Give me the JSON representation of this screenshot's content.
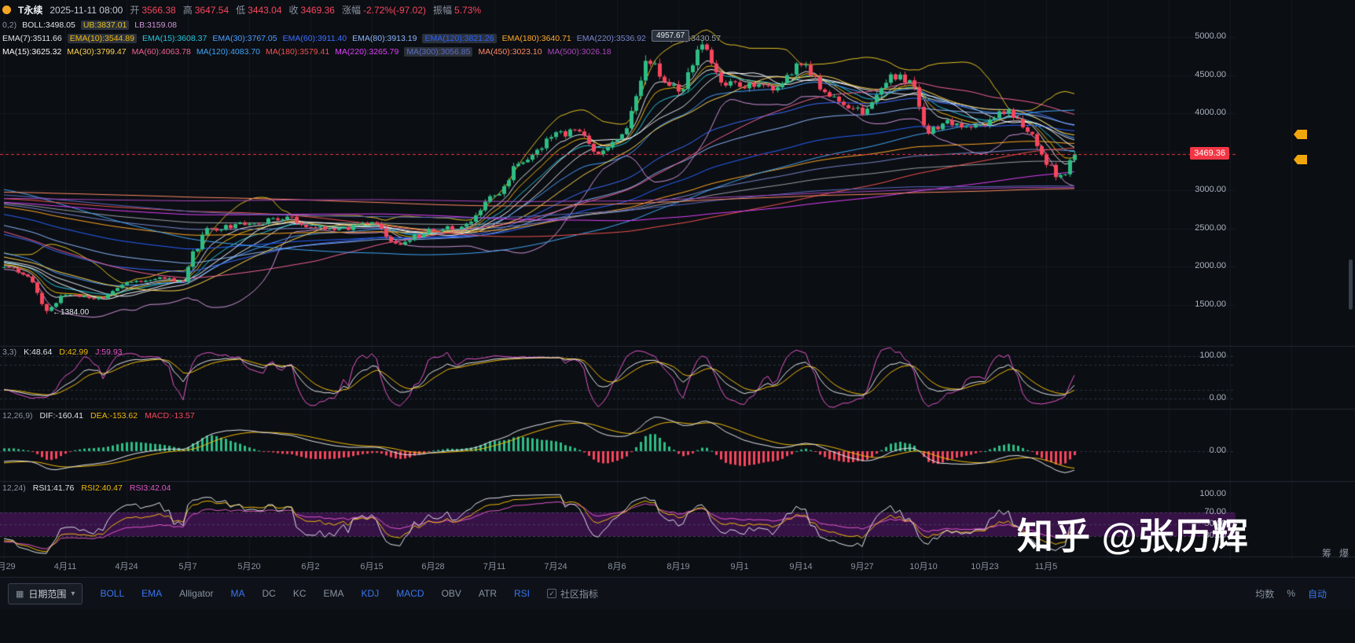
{
  "watermark": "知乎 @张历辉",
  "header": {
    "symbol_fragment": "T永续",
    "datetime": "2025-11-11 08:00",
    "fields": [
      {
        "label": "开",
        "value": "3566.38"
      },
      {
        "label": "高",
        "value": "3647.54"
      },
      {
        "label": "低",
        "value": "3443.04"
      },
      {
        "label": "收",
        "value": "3469.36"
      },
      {
        "label": "涨幅",
        "value": "-2.72%(-97.02)"
      },
      {
        "label": "振幅",
        "value": "5.73%"
      }
    ],
    "boll": {
      "prefix": "0,2)",
      "items": [
        {
          "label": "BOLL",
          "value": "3498.05",
          "color": "#dfe3e8"
        },
        {
          "label": "UB",
          "value": "3837.01",
          "color": "#e3c224",
          "hl": true
        },
        {
          "label": "LB",
          "value": "3159.08",
          "color": "#ce93d8"
        }
      ]
    },
    "ema": {
      "items": [
        {
          "label": "EMA(7)",
          "value": "3511.66",
          "color": "#dfe3e8"
        },
        {
          "label": "EMA(10)",
          "value": "3544.89",
          "color": "#f0b90b",
          "hl": true
        },
        {
          "label": "EMA(15)",
          "value": "3608.37",
          "color": "#26c6da"
        },
        {
          "label": "EMA(30)",
          "value": "3767.05",
          "color": "#4a9eff"
        },
        {
          "label": "EMA(60)",
          "value": "3911.40",
          "color": "#3d6dff"
        },
        {
          "label": "EMA(80)",
          "value": "3913.19",
          "color": "#8ab4f8"
        },
        {
          "label": "EMA(120)",
          "value": "3821.26",
          "color": "#2962ff",
          "hl": true
        },
        {
          "label": "EMA(180)",
          "value": "3640.71",
          "color": "#ffa726"
        },
        {
          "label": "EMA(220)",
          "value": "3536.92",
          "color": "#7986cb"
        },
        {
          "label": "EMA(300)",
          "value": "3430.57",
          "color": "#9aa0a6"
        }
      ]
    },
    "ma": {
      "items": [
        {
          "label": "MA(15)",
          "value": "3625.32",
          "color": "#fafafa"
        },
        {
          "label": "MA(30)",
          "value": "3799.47",
          "color": "#ffd54f"
        },
        {
          "label": "MA(60)",
          "value": "4063.78",
          "color": "#f06292"
        },
        {
          "label": "MA(120)",
          "value": "4083.70",
          "color": "#42a5f5"
        },
        {
          "label": "MA(180)",
          "value": "3579.41",
          "color": "#ef5350"
        },
        {
          "label": "MA(220)",
          "value": "3265.79",
          "color": "#e040fb"
        },
        {
          "label": "MA(300)",
          "value": "3056.85",
          "color": "#5c6bc0",
          "hl": true
        },
        {
          "label": "MA(450)",
          "value": "3023.10",
          "color": "#ff8a65"
        },
        {
          "label": "MA(500)",
          "value": "3026.18",
          "color": "#ab47bc"
        }
      ]
    }
  },
  "panels": {
    "kdj": {
      "prefix": "3,3)",
      "values": [
        {
          "label": "K",
          "value": "48.64",
          "color": "#dfe3e8"
        },
        {
          "label": "D",
          "value": "42.99",
          "color": "#f0b90b"
        },
        {
          "label": "J",
          "value": "59.93",
          "color": "#e356c9"
        }
      ],
      "axis": [
        {
          "label": "100.00",
          "value": 100
        },
        {
          "label": "0.00",
          "value": 0
        }
      ]
    },
    "macd": {
      "prefix": "12,26,9)",
      "values": [
        {
          "label": "DIF",
          "value": "-160.41",
          "color": "#dfe3e8"
        },
        {
          "label": "DEA",
          "value": "-153.62",
          "color": "#f0b90b"
        },
        {
          "label": "MACD",
          "value": "-13.57",
          "color": "#f6465d"
        }
      ],
      "axis": [
        {
          "label": "0.00",
          "value": 0
        }
      ]
    },
    "rsi": {
      "prefix": "12,24)",
      "values": [
        {
          "label": "RSI1",
          "value": "41.76",
          "color": "#dfe3e8"
        },
        {
          "label": "RSI2",
          "value": "40.47",
          "color": "#f0b90b"
        },
        {
          "label": "RSI3",
          "value": "42.04",
          "color": "#e356c9"
        }
      ],
      "axis": [
        {
          "label": "100.00",
          "value": 100
        },
        {
          "label": "70.00",
          "value": 70
        },
        {
          "label": "50.00",
          "value": 50
        },
        {
          "label": "30.00",
          "value": 30
        }
      ]
    }
  },
  "axes": {
    "price_ticks": [
      {
        "label": "5000.00",
        "value": 5000
      },
      {
        "label": "4500.00",
        "value": 4500
      },
      {
        "label": "4000.00",
        "value": 4000
      },
      {
        "label": "3000.00",
        "value": 3000
      },
      {
        "label": "2500.00",
        "value": 2500
      },
      {
        "label": "2000.00",
        "value": 2000
      },
      {
        "label": "1500.00",
        "value": 1500
      }
    ],
    "last_price": {
      "label": "3469.36",
      "value": 3469.36
    },
    "high_marker": {
      "label": "4957.67"
    },
    "low_marker": {
      "arrow": "←",
      "label": "1384.00"
    },
    "date_ticks": [
      {
        "label": "3月29",
        "day": 0
      },
      {
        "label": "4月11",
        "day": 13
      },
      {
        "label": "4月24",
        "day": 26
      },
      {
        "label": "5月7",
        "day": 39
      },
      {
        "label": "5月20",
        "day": 52
      },
      {
        "label": "6月2",
        "day": 65
      },
      {
        "label": "6月15",
        "day": 78
      },
      {
        "label": "6月28",
        "day": 91
      },
      {
        "label": "7月11",
        "day": 104
      },
      {
        "label": "7月24",
        "day": 117
      },
      {
        "label": "8月6",
        "day": 130
      },
      {
        "label": "8月19",
        "day": 143
      },
      {
        "label": "9月1",
        "day": 156
      },
      {
        "label": "9月14",
        "day": 169
      },
      {
        "label": "9月27",
        "day": 182
      },
      {
        "label": "10月10",
        "day": 195
      },
      {
        "label": "10月23",
        "day": 208
      },
      {
        "label": "11月5",
        "day": 221
      }
    ]
  },
  "toolbar": {
    "date_range_label": "日期范围",
    "items": [
      {
        "label": "BOLL",
        "name": "boll",
        "active": true
      },
      {
        "label": "EMA",
        "name": "ema",
        "active": true
      },
      {
        "label": "Alligator",
        "name": "alligator",
        "active": false
      },
      {
        "label": "MA",
        "name": "ma",
        "active": true
      },
      {
        "label": "DC",
        "name": "dc",
        "active": false
      },
      {
        "label": "KC",
        "name": "kc",
        "active": false
      },
      {
        "label": "EMA",
        "name": "ema-sub",
        "active": false
      },
      {
        "label": "KDJ",
        "name": "kdj",
        "active": true
      },
      {
        "label": "MACD",
        "name": "macd",
        "active": true
      },
      {
        "label": "OBV",
        "name": "obv",
        "active": false
      },
      {
        "label": "ATR",
        "name": "atr",
        "active": false
      },
      {
        "label": "RSI",
        "name": "rsi",
        "active": true
      },
      {
        "label": "社区指标",
        "name": "community-indicators",
        "active": false,
        "checkbox": true
      }
    ],
    "right": [
      {
        "label": "均数",
        "name": "average",
        "active": false
      },
      {
        "label": "%",
        "name": "percent",
        "active": false
      },
      {
        "label": "自动",
        "name": "auto",
        "active": true
      }
    ]
  },
  "side_strip": {
    "items": [
      {
        "label": "筹",
        "name": "chips"
      },
      {
        "label": "爆",
        "name": "liquidation"
      }
    ]
  },
  "chart_data": {
    "type": "candlestick",
    "interval": "1D",
    "ohlc_summary": {
      "open": 3566.38,
      "high": 3647.54,
      "low": 3443.04,
      "close": 3469.36,
      "change_pct": -2.72,
      "change_abs": -97.02,
      "amplitude_pct": 5.73
    },
    "axis_price_min": 1500,
    "axis_price_max": 5000,
    "visible_days": 228,
    "noise_seed": 9,
    "last_price": 3469.36,
    "last_price_color": "#f23645",
    "up_color": "#2ebd85",
    "down_color": "#f6465d",
    "high_point": {
      "day": 148,
      "price": 4957.67
    },
    "low_point": {
      "day": 9,
      "price": 1384.0
    },
    "anchors": [
      [
        -500,
        2050
      ],
      [
        -440,
        2300
      ],
      [
        -380,
        3480
      ],
      [
        -330,
        3100
      ],
      [
        -270,
        3420
      ],
      [
        -210,
        2650
      ],
      [
        -150,
        2450
      ],
      [
        -100,
        3850
      ],
      [
        -70,
        3300
      ],
      [
        -40,
        2720
      ],
      [
        -20,
        2150
      ],
      [
        0,
        2010
      ],
      [
        5,
        1860
      ],
      [
        9,
        1430
      ],
      [
        13,
        1640
      ],
      [
        20,
        1590
      ],
      [
        26,
        1790
      ],
      [
        33,
        1845
      ],
      [
        38,
        1810
      ],
      [
        40,
        2180
      ],
      [
        43,
        2480
      ],
      [
        52,
        2560
      ],
      [
        60,
        2640
      ],
      [
        65,
        2520
      ],
      [
        71,
        2500
      ],
      [
        78,
        2555
      ],
      [
        84,
        2260
      ],
      [
        87,
        2400
      ],
      [
        91,
        2480
      ],
      [
        98,
        2530
      ],
      [
        104,
        2960
      ],
      [
        110,
        3380
      ],
      [
        117,
        3720
      ],
      [
        122,
        3790
      ],
      [
        126,
        3470
      ],
      [
        130,
        3640
      ],
      [
        137,
        4680
      ],
      [
        140,
        4440
      ],
      [
        143,
        4310
      ],
      [
        148,
        4890
      ],
      [
        153,
        4360
      ],
      [
        156,
        4390
      ],
      [
        162,
        4310
      ],
      [
        169,
        4610
      ],
      [
        176,
        4190
      ],
      [
        182,
        4030
      ],
      [
        188,
        4470
      ],
      [
        192,
        4440
      ],
      [
        196,
        3780
      ],
      [
        200,
        3890
      ],
      [
        205,
        3850
      ],
      [
        208,
        3890
      ],
      [
        212,
        4040
      ],
      [
        217,
        3810
      ],
      [
        221,
        3360
      ],
      [
        224,
        3160
      ],
      [
        227,
        3469.36
      ]
    ],
    "overlays": {
      "boll": {
        "period": 20,
        "mult": 2,
        "mid_color": "#dfe3e8",
        "band_color": "#e3c224",
        "lb_color": "#ce93d8"
      },
      "ema": [
        [
          7,
          "#dfe3e8"
        ],
        [
          10,
          "#f0b90b"
        ],
        [
          15,
          "#26c6da"
        ],
        [
          30,
          "#4a9eff"
        ],
        [
          60,
          "#3d6dff"
        ],
        [
          80,
          "#8ab4f8"
        ],
        [
          120,
          "#2962ff"
        ],
        [
          180,
          "#ffa726"
        ],
        [
          220,
          "#7986cb"
        ],
        [
          300,
          "#9aa0a6"
        ]
      ],
      "ma": [
        [
          15,
          "#fafafa"
        ],
        [
          30,
          "#ffd54f"
        ],
        [
          60,
          "#f06292"
        ],
        [
          120,
          "#42a5f5"
        ],
        [
          180,
          "#ef5350"
        ],
        [
          220,
          "#e040fb"
        ],
        [
          300,
          "#5c6bc0"
        ],
        [
          450,
          "#ff8a65"
        ],
        [
          500,
          "#ab47bc"
        ]
      ]
    },
    "indicators": {
      "kdj": {
        "params": [
          9,
          3,
          3
        ],
        "k_color": "#dfe3e8",
        "d_color": "#f0b90b",
        "j_color": "#e356c9"
      },
      "macd": {
        "params": [
          12,
          26,
          9
        ],
        "dif_color": "#dfe3e8",
        "dea_color": "#f0b90b",
        "up_color": "#2ebd85",
        "down_color": "#f6465d"
      },
      "rsi": {
        "params": [
          6,
          12,
          24
        ],
        "colors": [
          "#dfe3e8",
          "#f0b90b",
          "#e356c9"
        ],
        "band": [
          30,
          70
        ],
        "band_color": "rgba(98,22,123,0.5)"
      }
    }
  }
}
